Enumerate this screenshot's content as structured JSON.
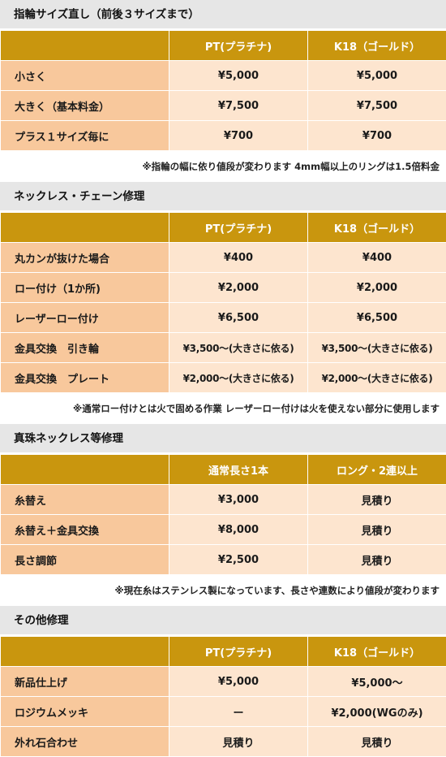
{
  "sections": [
    {
      "title": "指輪サイズ直し（前後３サイズまで）",
      "headers": [
        "",
        "PT(プラチナ)",
        "K18（ゴールド）"
      ],
      "rows": [
        {
          "label": "小さく",
          "v1": "¥5,000",
          "v2": "¥5,000"
        },
        {
          "label": "大きく（基本料金）",
          "v1": "¥7,500",
          "v2": "¥7,500"
        },
        {
          "label": "プラス１サイズ毎に",
          "v1": "¥700",
          "v2": "¥700"
        }
      ],
      "note": "※指輪の幅に依り値段が変わります 4mm幅以上のリングは1.5倍料金"
    },
    {
      "title": "ネックレス・チェーン修理",
      "headers": [
        "",
        "PT(プラチナ)",
        "K18（ゴールド）"
      ],
      "rows": [
        {
          "label": "丸カンが抜けた場合",
          "v1": "¥400",
          "v2": "¥400"
        },
        {
          "label": "ロー付け（1か所)",
          "v1": "¥2,000",
          "v2": "¥2,000"
        },
        {
          "label": "レーザーロー付け",
          "v1": "¥6,500",
          "v2": "¥6,500"
        },
        {
          "label": "金具交換　引き輪",
          "v1": "¥3,500～(大きさに依る)",
          "v2": "¥3,500～(大きさに依る)"
        },
        {
          "label": "金具交換　プレート",
          "v1": "¥2,000～(大きさに依る)",
          "v2": "¥2,000～(大きさに依る)"
        }
      ],
      "note": "※通常ロー付けとは火で固める作業 レーザーロー付けは火を使えない部分に使用します"
    },
    {
      "title": "真珠ネックレス等修理",
      "headers": [
        "",
        "通常長さ1本",
        "ロング・2連以上"
      ],
      "rows": [
        {
          "label": "糸替え",
          "v1": "¥3,000",
          "v2": "見積り"
        },
        {
          "label": "糸替え＋金具交換",
          "v1": "¥8,000",
          "v2": "見積り"
        },
        {
          "label": "長さ調節",
          "v1": "¥2,500",
          "v2": "見積り"
        }
      ],
      "note": "※現在糸はステンレス製になっています、長さや連数により値段が変わります"
    },
    {
      "title": "その他修理",
      "headers": [
        "",
        "PT(プラチナ)",
        "K18（ゴールド）"
      ],
      "rows": [
        {
          "label": "新品仕上げ",
          "v1": "¥5,000",
          "v2": "¥5,000～"
        },
        {
          "label": "ロジウムメッキ",
          "v1": "ー",
          "v2": "¥2,000(WGのみ)"
        },
        {
          "label": "外れ石合わせ",
          "v1": "見積り",
          "v2": "見積り"
        }
      ],
      "note": ""
    }
  ]
}
